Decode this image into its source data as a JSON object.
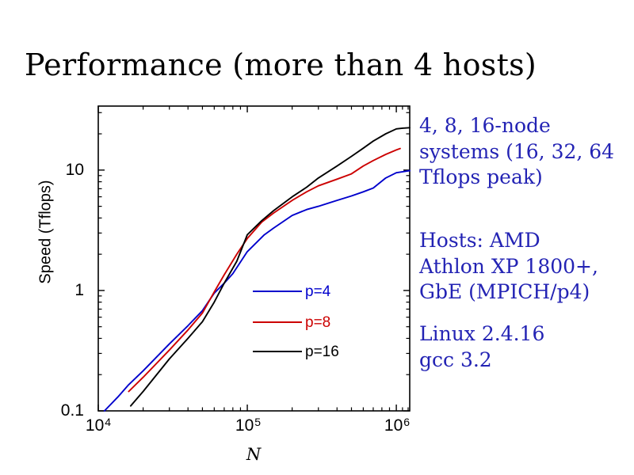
{
  "slide": {
    "title": "Performance (more than 4 hosts)",
    "background": "#ffffff",
    "title_color": "#000000",
    "note_color": "#2323b4",
    "notes": [
      {
        "lines": [
          "4, 8, 16-node",
          "systems (16, 32, 64",
          "Tflops peak)"
        ]
      },
      {
        "lines": [
          "Hosts: AMD",
          "Athlon XP 1800+,",
          "GbE (MPICH/p4)"
        ]
      },
      {
        "lines": [
          "Linux 2.4.16",
          "gcc 3.2"
        ]
      }
    ]
  },
  "chart_data": {
    "type": "line",
    "title": "",
    "xlabel": "N",
    "ylabel": "Speed (Tflops)",
    "x_scale": "log",
    "y_scale": "log",
    "xlim": [
      10000,
      1230000
    ],
    "ylim": [
      0.1,
      34
    ],
    "grid": false,
    "frame_color": "#000000",
    "x_ticks": [
      {
        "base": "10",
        "exp": "4",
        "value": 10000
      },
      {
        "base": "10",
        "exp": "5",
        "value": 100000
      },
      {
        "base": "10",
        "exp": "6",
        "value": 1000000
      }
    ],
    "x_minor_ticks": [
      20000,
      30000,
      40000,
      50000,
      60000,
      70000,
      80000,
      90000,
      200000,
      300000,
      400000,
      500000,
      600000,
      700000,
      800000,
      900000,
      1100000,
      1200000
    ],
    "y_ticks": [
      {
        "label": "10",
        "value": 10
      },
      {
        "label": "1",
        "value": 1
      },
      {
        "label": "0.1",
        "value": 0.1
      }
    ],
    "y_minor_ticks": [
      0.2,
      0.3,
      0.4,
      0.5,
      0.6,
      0.7,
      0.8,
      0.9,
      2,
      3,
      4,
      5,
      6,
      7,
      8,
      9,
      20,
      30
    ],
    "legend": [
      {
        "label": "p=4",
        "color": "#0000cc"
      },
      {
        "label": "p=8",
        "color": "#cc0000"
      },
      {
        "label": "p=16",
        "color": "#000000"
      }
    ],
    "series": [
      {
        "name": "p=4",
        "color": "#0000cc",
        "points": [
          [
            11000,
            0.1
          ],
          [
            13500,
            0.13
          ],
          [
            16000,
            0.165
          ],
          [
            20000,
            0.215
          ],
          [
            30000,
            0.36
          ],
          [
            40000,
            0.51
          ],
          [
            50000,
            0.68
          ],
          [
            60000,
            0.95
          ],
          [
            70000,
            1.15
          ],
          [
            80000,
            1.38
          ],
          [
            100000,
            2.1
          ],
          [
            130000,
            2.9
          ],
          [
            150000,
            3.3
          ],
          [
            200000,
            4.2
          ],
          [
            250000,
            4.7
          ],
          [
            300000,
            5.0
          ],
          [
            400000,
            5.6
          ],
          [
            500000,
            6.1
          ],
          [
            600000,
            6.6
          ],
          [
            700000,
            7.1
          ],
          [
            850000,
            8.6
          ],
          [
            1000000,
            9.5
          ],
          [
            1230000,
            9.9
          ]
        ]
      },
      {
        "name": "p=8",
        "color": "#cc0000",
        "points": [
          [
            16000,
            0.145
          ],
          [
            20000,
            0.19
          ],
          [
            30000,
            0.32
          ],
          [
            40000,
            0.47
          ],
          [
            50000,
            0.65
          ],
          [
            60000,
            0.97
          ],
          [
            70000,
            1.35
          ],
          [
            85000,
            2.0
          ],
          [
            100000,
            2.7
          ],
          [
            125000,
            3.7
          ],
          [
            150000,
            4.4
          ],
          [
            200000,
            5.6
          ],
          [
            250000,
            6.6
          ],
          [
            300000,
            7.4
          ],
          [
            400000,
            8.4
          ],
          [
            500000,
            9.3
          ],
          [
            600000,
            10.8
          ],
          [
            700000,
            12.0
          ],
          [
            850000,
            13.5
          ],
          [
            1000000,
            14.7
          ],
          [
            1060000,
            15.1
          ]
        ]
      },
      {
        "name": "p=16",
        "color": "#000000",
        "points": [
          [
            16500,
            0.11
          ],
          [
            20000,
            0.145
          ],
          [
            30000,
            0.27
          ],
          [
            40000,
            0.4
          ],
          [
            50000,
            0.55
          ],
          [
            60000,
            0.8
          ],
          [
            70000,
            1.15
          ],
          [
            85000,
            1.75
          ],
          [
            100000,
            2.9
          ],
          [
            125000,
            3.8
          ],
          [
            150000,
            4.6
          ],
          [
            200000,
            6.0
          ],
          [
            250000,
            7.2
          ],
          [
            300000,
            8.6
          ],
          [
            400000,
            10.8
          ],
          [
            500000,
            13.0
          ],
          [
            600000,
            15.2
          ],
          [
            700000,
            17.4
          ],
          [
            850000,
            20.0
          ],
          [
            1000000,
            22.0
          ],
          [
            1100000,
            22.3
          ],
          [
            1230000,
            22.5
          ]
        ]
      }
    ]
  }
}
